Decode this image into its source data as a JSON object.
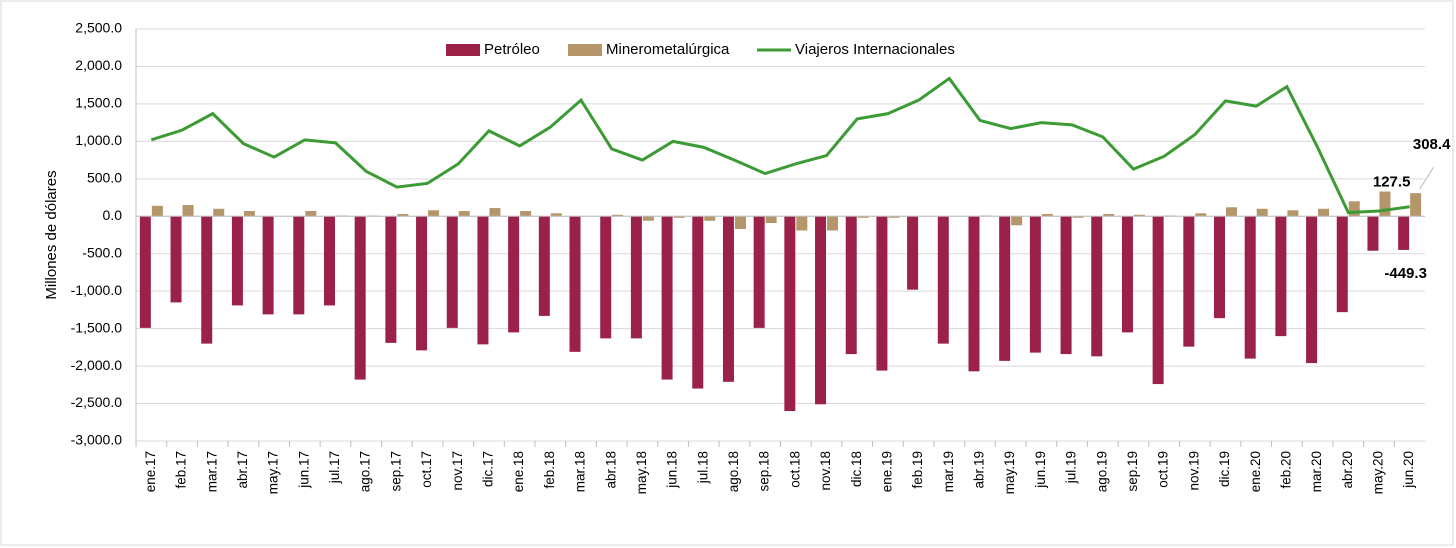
{
  "chart_data": {
    "type": "bar_line",
    "y_axis_label": "Millones de dólares",
    "legend": "top",
    "grid": true,
    "ylim": [
      -3000,
      2500
    ],
    "yticks": [
      {
        "value": 2500,
        "label": "2,500.0"
      },
      {
        "value": 2000,
        "label": "2,000.0"
      },
      {
        "value": 1500,
        "label": "1,500.0"
      },
      {
        "value": 1000,
        "label": "1,000.0"
      },
      {
        "value": 500,
        "label": "500.0"
      },
      {
        "value": 0,
        "label": "0.0"
      },
      {
        "value": -500,
        "label": "-500.0"
      },
      {
        "value": -1000,
        "label": "-1,000.0"
      },
      {
        "value": -1500,
        "label": "-1,500.0"
      },
      {
        "value": -2000,
        "label": "-2,000.0"
      },
      {
        "value": -2500,
        "label": "-2,500.0"
      },
      {
        "value": -3000,
        "label": "-3,000.0"
      }
    ],
    "categories": [
      "ene.17",
      "feb.17",
      "mar.17",
      "abr.17",
      "may.17",
      "jun.17",
      "jul.17",
      "ago.17",
      "sep.17",
      "oct.17",
      "nov.17",
      "dic.17",
      "ene.18",
      "feb.18",
      "mar.18",
      "abr.18",
      "may.18",
      "jun.18",
      "jul.18",
      "ago.18",
      "sep.18",
      "oct.18",
      "nov.18",
      "dic.18",
      "ene.19",
      "feb.19",
      "mar.19",
      "abr.19",
      "may.19",
      "jun.19",
      "jul.19",
      "ago.19",
      "sep.19",
      "oct.19",
      "nov.19",
      "dic.19",
      "ene.20",
      "feb.20",
      "mar.20",
      "abr.20",
      "may.20",
      "jun.20"
    ],
    "series": [
      {
        "name": "Petróleo",
        "kind": "bar",
        "color": "#9b2148",
        "label_color": "#c00000",
        "values": [
          -1490,
          -1150,
          -1700,
          -1190,
          -1310,
          -1310,
          -1190,
          -2180,
          -1690,
          -1790,
          -1490,
          -1710,
          -1550,
          -1330,
          -1810,
          -1630,
          -1630,
          -2180,
          -2300,
          -2210,
          -1490,
          -2600,
          -2510,
          -1840,
          -2060,
          -980,
          -1700,
          -2070,
          -1930,
          -1820,
          -1840,
          -1870,
          -1550,
          -2240,
          -1740,
          -1360,
          -1900,
          -1600,
          -1960,
          -1280,
          -460,
          -449.3
        ],
        "value_labels": [
          null,
          null,
          null,
          null,
          null,
          null,
          null,
          null,
          null,
          null,
          null,
          null,
          null,
          null,
          null,
          null,
          null,
          null,
          null,
          null,
          null,
          null,
          null,
          null,
          null,
          null,
          null,
          null,
          null,
          null,
          null,
          null,
          null,
          null,
          null,
          null,
          null,
          null,
          null,
          null,
          null,
          "-449.3"
        ]
      },
      {
        "name": "Minerometalúrgica",
        "kind": "bar",
        "color": "#b5966a",
        "label_color": "#b08a58",
        "values": [
          140,
          150,
          100,
          70,
          0,
          70,
          10,
          10,
          30,
          80,
          70,
          110,
          70,
          40,
          0,
          20,
          -60,
          -20,
          -60,
          -170,
          -90,
          -190,
          -190,
          -20,
          -20,
          0,
          0,
          10,
          -120,
          30,
          -20,
          30,
          20,
          10,
          40,
          120,
          100,
          80,
          100,
          200,
          330,
          308.4
        ],
        "value_labels": [
          null,
          null,
          null,
          null,
          null,
          null,
          null,
          null,
          null,
          null,
          null,
          null,
          null,
          null,
          null,
          null,
          null,
          null,
          null,
          null,
          null,
          null,
          null,
          null,
          null,
          null,
          null,
          null,
          null,
          null,
          null,
          null,
          null,
          null,
          null,
          null,
          null,
          null,
          null,
          null,
          null,
          "308.4"
        ]
      },
      {
        "name": "Viajeros Internacionales",
        "kind": "line",
        "color": "#3c9b35",
        "label_color": "#1fa060",
        "values": [
          1020,
          1150,
          1370,
          970,
          790,
          1020,
          980,
          600,
          390,
          440,
          700,
          1140,
          940,
          1190,
          1550,
          900,
          750,
          1000,
          920,
          750,
          570,
          700,
          810,
          1300,
          1370,
          1550,
          1840,
          1280,
          1170,
          1250,
          1220,
          1060,
          630,
          800,
          1090,
          1540,
          1470,
          1730,
          920,
          50,
          70,
          127.5
        ],
        "value_labels": [
          null,
          null,
          null,
          null,
          null,
          null,
          null,
          null,
          null,
          null,
          null,
          null,
          null,
          null,
          null,
          null,
          null,
          null,
          null,
          null,
          null,
          null,
          null,
          null,
          null,
          null,
          null,
          null,
          null,
          null,
          null,
          null,
          null,
          null,
          null,
          null,
          null,
          null,
          null,
          null,
          null,
          "127.5"
        ]
      }
    ]
  }
}
